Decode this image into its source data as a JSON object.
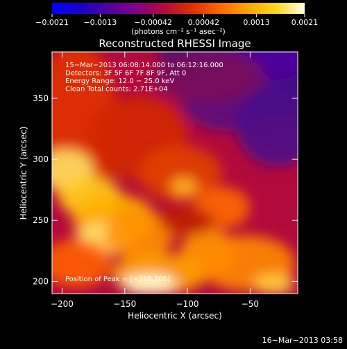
{
  "chart_data": {
    "type": "heatmap",
    "title": "Reconstructed RHESSI Image",
    "xlabel": "Heliocentric X (arcsec)",
    "ylabel": "Heliocentric Y (arcsec)",
    "xlim": [
      -208,
      -12
    ],
    "ylim": [
      190,
      388
    ],
    "x_ticks": [
      -200,
      -150,
      -100,
      -50
    ],
    "x_tick_labels": [
      "−200",
      "−150",
      "−100",
      "−50"
    ],
    "y_ticks": [
      200,
      250,
      300,
      350
    ],
    "y_tick_labels": [
      "200",
      "250",
      "300",
      "350"
    ],
    "colorbar": {
      "range": [
        -0.0021,
        0.0021
      ],
      "ticks": [
        -0.0021,
        -0.0013,
        -0.00042,
        0.00042,
        0.0013,
        0.0021
      ],
      "tick_labels": [
        "−0.0021",
        "−0.0013",
        "−0.00042",
        "0.00042",
        "0.0013",
        "0.0021"
      ],
      "units_label": "(photons cm⁻² s⁻¹ asec⁻²)",
      "colormap": [
        "#0000ff",
        "#1a00c8",
        "#50009e",
        "#82008a",
        "#b30a3c",
        "#e03000",
        "#ff6a00",
        "#ffa500",
        "#ffd820",
        "#ffffe6"
      ]
    },
    "annotations": [
      "15−Mar−2013 06:08:14.000 to 06:12:16.000",
      "Detectors: 3F 5F 6F 7F 8F 9F, Att 0",
      "Energy Range: 12.0 − 25.0 keV",
      "Clean     Total counts: 2.71E+04"
    ],
    "peak_label": "Position of Peak = [−118,205]",
    "grid": false,
    "legend": "none"
  },
  "timestamp": "16−Mar−2013 03:58"
}
